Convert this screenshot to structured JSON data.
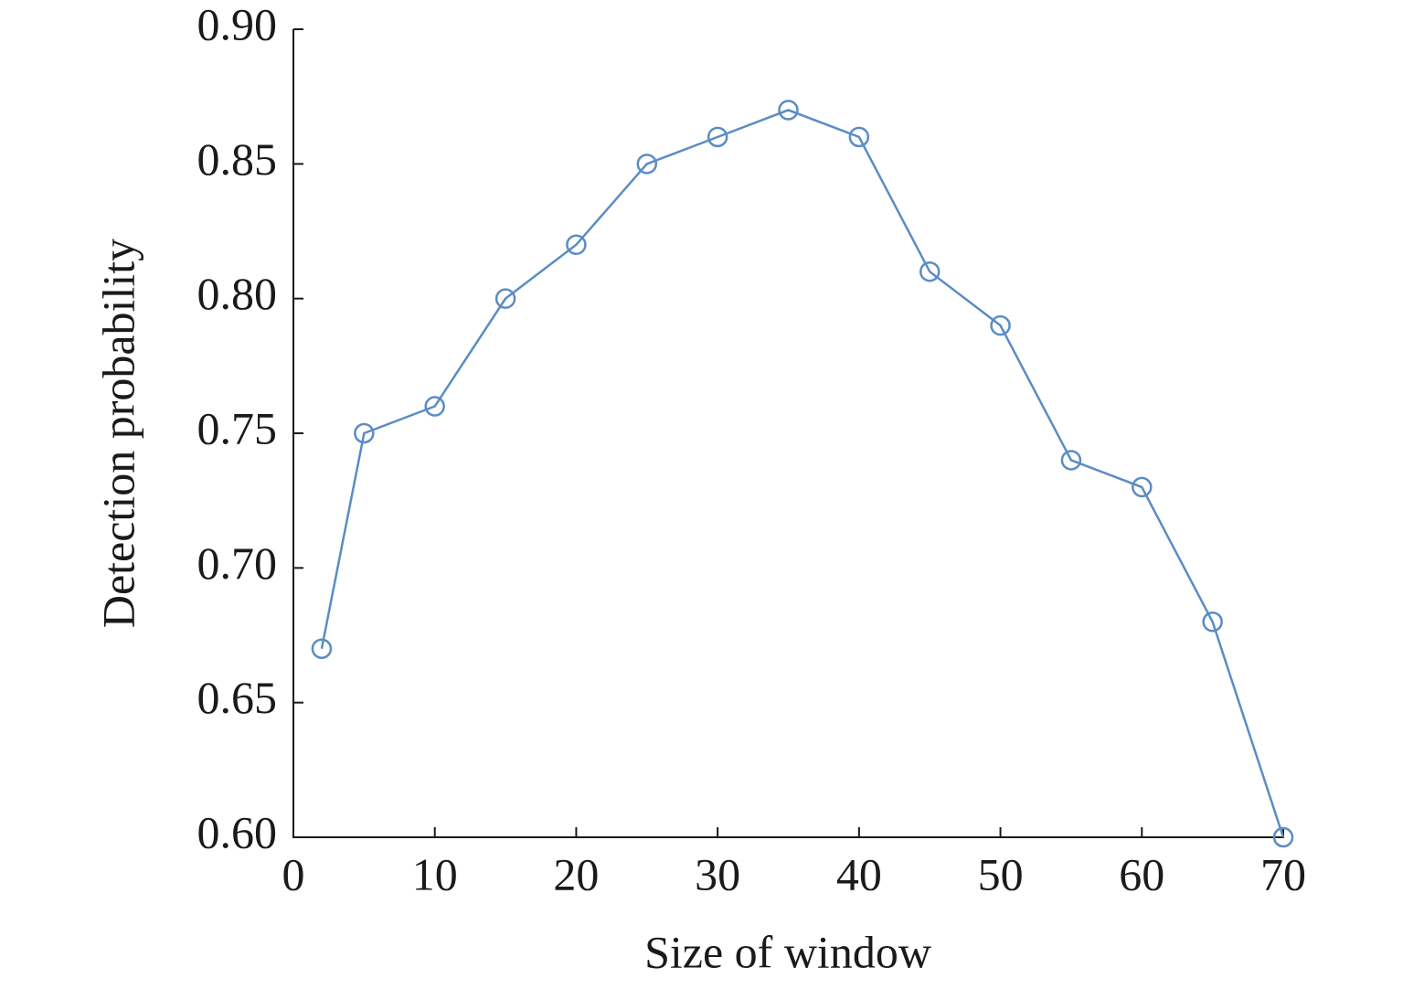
{
  "chart_data": {
    "type": "line",
    "x_label": "Size of window",
    "y_label": "Detection probability",
    "x": [
      2,
      5,
      10,
      15,
      20,
      25,
      30,
      35,
      40,
      45,
      50,
      55,
      60,
      65,
      70
    ],
    "values": [
      0.67,
      0.75,
      0.76,
      0.8,
      0.82,
      0.85,
      0.86,
      0.87,
      0.86,
      0.81,
      0.79,
      0.74,
      0.73,
      0.68,
      0.6
    ],
    "color": "#5b8cc4",
    "xlim": [
      0,
      70
    ],
    "xticks": [
      0,
      10,
      20,
      30,
      40,
      50,
      60,
      70
    ],
    "ylim": [
      0.6,
      0.9
    ],
    "yticks": [
      {
        "value": 0.6,
        "label": "0.60"
      },
      {
        "value": 0.65,
        "label": "0.65"
      },
      {
        "value": 0.7,
        "label": "0.70"
      },
      {
        "value": 0.75,
        "label": "0.75"
      },
      {
        "value": 0.8,
        "label": "0.80"
      },
      {
        "value": 0.85,
        "label": "0.85"
      },
      {
        "value": 0.9,
        "label": "0.90"
      }
    ],
    "grid": false
  }
}
